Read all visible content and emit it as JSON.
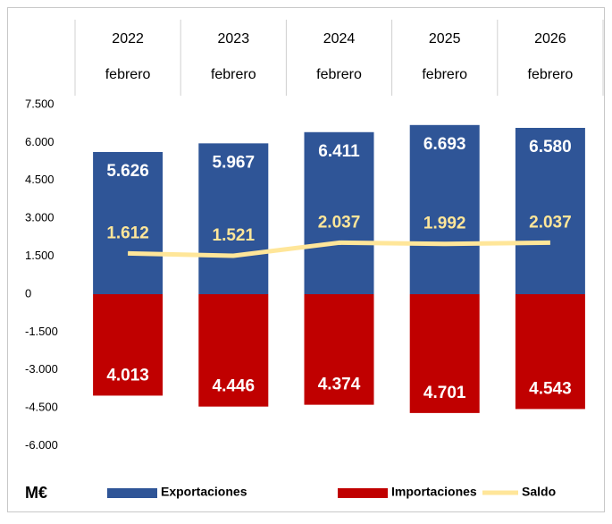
{
  "chart_data": {
    "type": "bar",
    "categories": [
      [
        "2022",
        "febrero"
      ],
      [
        "2023",
        "febrero"
      ],
      [
        "2024",
        "febrero"
      ],
      [
        "2025",
        "febrero"
      ],
      [
        "2026",
        "febrero"
      ]
    ],
    "series": [
      {
        "name": "Exportaciones",
        "color": "#2f5597",
        "values": [
          5626,
          5967,
          6411,
          6693,
          6580
        ],
        "value_labels": [
          "5.626",
          "5.967",
          "6.411",
          "6.693",
          "6.580"
        ]
      },
      {
        "name": "Importaciones",
        "color": "#c00000",
        "values": [
          -4013,
          -4446,
          -4374,
          -4701,
          -4543
        ],
        "value_labels": [
          "4.013",
          "4.446",
          "4.374",
          "4.701",
          "4.543"
        ]
      },
      {
        "name": "Saldo",
        "type": "line",
        "color": "#ffe699",
        "values": [
          1612,
          1521,
          2037,
          1992,
          2037
        ],
        "value_labels": [
          "1.612",
          "1.521",
          "2.037",
          "1.992",
          "2.037"
        ]
      }
    ],
    "ylabel": "M€",
    "ylim": [
      -7500,
      7500
    ],
    "yticks": [
      {
        "value": -6000,
        "label": "-6.000"
      },
      {
        "value": -4500,
        "label": "-4.500"
      },
      {
        "value": -3000,
        "label": "-3.000"
      },
      {
        "value": -1500,
        "label": "-1.500"
      },
      0,
      {
        "value": 1500,
        "label": "1.500"
      },
      {
        "value": 3000,
        "label": "3.000"
      },
      {
        "value": 4500,
        "label": "4.500"
      },
      {
        "value": 6000,
        "label": "6.000"
      },
      {
        "value": 7500,
        "label": "7.500"
      }
    ],
    "grid": false
  }
}
